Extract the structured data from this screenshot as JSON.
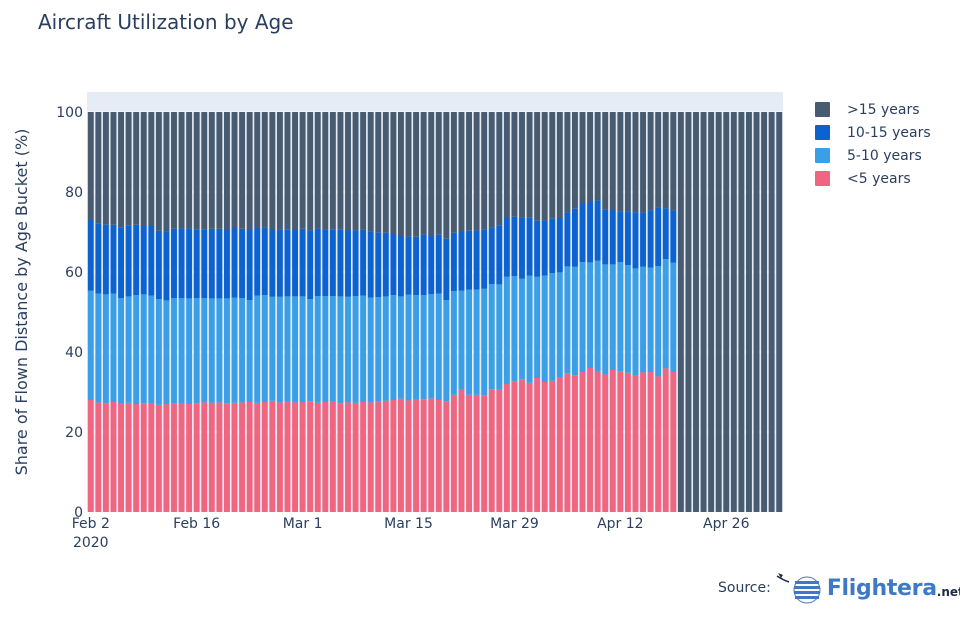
{
  "title": "Aircraft Utilization by Age",
  "source": {
    "label": "Source:",
    "brand": "Flightera",
    "suffix": ".net"
  },
  "colors": {
    "gt15": "#485b70",
    "10_15": "#0c62cf",
    "5_10": "#3a9fe6",
    "lt5": "#f06580",
    "plot_bg": "#e5ecf6"
  },
  "legend": [
    {
      "name": ">15 years",
      "color": "#485b70"
    },
    {
      "name": "10-15 years",
      "color": "#0c62cf"
    },
    {
      "name": "5-10 years",
      "color": "#3a9fe6"
    },
    {
      "name": "<5 years",
      "color": "#f06580"
    }
  ],
  "chart_data": {
    "type": "bar",
    "stacked": true,
    "title": "Aircraft Utilization by Age",
    "ylabel": "Share of Flown Distance by Age Bucket (%)",
    "xlabel": "",
    "ylim": [
      0,
      105
    ],
    "yticks": [
      0,
      20,
      40,
      60,
      80,
      100
    ],
    "x_start": "2020-02-02",
    "x_end": "2020-05-03",
    "xticks": [
      {
        "date": "2020-02-02",
        "label": "Feb 2",
        "sublabel": "2020"
      },
      {
        "date": "2020-02-16",
        "label": "Feb 16"
      },
      {
        "date": "2020-03-01",
        "label": "Mar 1"
      },
      {
        "date": "2020-03-15",
        "label": "Mar 15"
      },
      {
        "date": "2020-03-29",
        "label": "Mar 29"
      },
      {
        "date": "2020-04-12",
        "label": "Apr 12"
      },
      {
        "date": "2020-04-26",
        "label": "Apr 26"
      }
    ],
    "series": [
      {
        "name": "<5 years",
        "color": "#f06580",
        "values": [
          28.0,
          27.4,
          27.2,
          27.5,
          27.1,
          27.3,
          27.0,
          27.2,
          27.1,
          26.8,
          27.0,
          27.2,
          27.1,
          27.0,
          27.2,
          27.4,
          27.3,
          27.4,
          27.2,
          27.3,
          27.4,
          27.5,
          27.3,
          27.5,
          27.8,
          27.4,
          27.6,
          27.4,
          27.5,
          27.7,
          27.3,
          27.5,
          27.6,
          27.2,
          27.4,
          27.3,
          27.5,
          27.4,
          27.6,
          27.8,
          28.0,
          28.3,
          27.9,
          28.1,
          28.2,
          28.4,
          28.0,
          27.7,
          29.3,
          30.6,
          29.3,
          29.3,
          29.2,
          30.7,
          30.6,
          32.0,
          32.7,
          33.2,
          32.3,
          33.5,
          32.5,
          32.8,
          33.6,
          34.7,
          34.2,
          35.0,
          36.0,
          35.1,
          34.4,
          35.5,
          35.2,
          34.8,
          34.1,
          34.9,
          35.0,
          33.9,
          35.9,
          35.0
        ]
      },
      {
        "name": "5-10 years",
        "color": "#3a9fe6",
        "values": [
          27.3,
          27.2,
          27.2,
          27.1,
          26.4,
          26.6,
          27.2,
          27.2,
          27.0,
          26.4,
          25.9,
          26.3,
          26.4,
          26.4,
          26.3,
          26.1,
          26.1,
          26.0,
          26.2,
          26.3,
          26.1,
          25.5,
          26.8,
          26.7,
          26.0,
          26.4,
          26.3,
          26.5,
          26.4,
          25.5,
          26.7,
          26.5,
          26.4,
          26.7,
          26.4,
          26.7,
          26.6,
          26.2,
          26.1,
          26.1,
          26.2,
          25.6,
          26.4,
          26.1,
          26.0,
          26.1,
          26.6,
          25.3,
          25.9,
          24.7,
          26.3,
          26.3,
          26.6,
          26.3,
          26.3,
          26.8,
          26.3,
          25.1,
          26.8,
          25.3,
          26.6,
          26.9,
          26.3,
          26.7,
          27.1,
          27.5,
          26.4,
          27.7,
          27.5,
          26.4,
          27.3,
          26.9,
          26.8,
          26.4,
          26.1,
          27.6,
          27.3,
          27.3
        ]
      },
      {
        "name": "10-15 years",
        "color": "#0c62cf",
        "values": [
          17.7,
          17.6,
          17.4,
          17.2,
          17.7,
          17.8,
          17.6,
          17.1,
          17.4,
          17.1,
          17.2,
          17.3,
          17.4,
          17.5,
          17.2,
          17.2,
          17.4,
          17.4,
          17.1,
          17.4,
          17.3,
          17.5,
          16.9,
          16.9,
          16.7,
          16.8,
          16.8,
          16.6,
          16.9,
          17.2,
          16.9,
          16.6,
          16.7,
          16.8,
          16.7,
          16.4,
          16.5,
          16.5,
          16.1,
          15.9,
          15.3,
          15.1,
          14.6,
          14.6,
          15.2,
          14.5,
          14.7,
          15.3,
          14.6,
          14.7,
          14.7,
          14.8,
          14.8,
          14.1,
          14.8,
          14.7,
          14.8,
          15.3,
          14.6,
          14.0,
          13.8,
          13.6,
          13.6,
          13.5,
          14.5,
          14.5,
          15.1,
          15.1,
          13.7,
          13.6,
          12.6,
          13.4,
          14.0,
          13.6,
          14.3,
          14.6,
          12.7,
          13.1
        ]
      }
    ],
    "remainder_series": {
      "name": ">15 years",
      "color": "#485b70",
      "note": "fills to 100"
    }
  }
}
